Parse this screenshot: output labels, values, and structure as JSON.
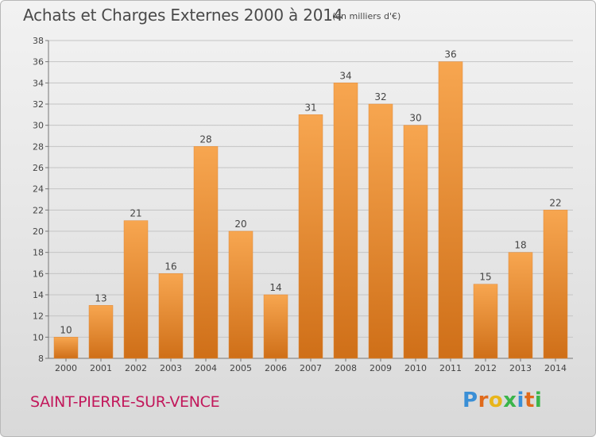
{
  "title": "Achats et Charges Externes 2000 à 2014",
  "unit_note": "(en milliers d'€)",
  "commune": "SAINT-PIERRE-SUR-VENCE",
  "logo": {
    "text": "Proxiti",
    "letters": [
      "P",
      "r",
      "o",
      "x",
      "i",
      "t",
      "i"
    ],
    "colors": [
      "#3a8fd6",
      "#e06a1b",
      "#e8b51a",
      "#3ab54a",
      "#3a8fd6",
      "#e06a1b",
      "#3ab54a"
    ]
  },
  "colors": {
    "bar_top": "#f7a650",
    "bar_bottom": "#cf6f18",
    "commune_text": "#c2185b"
  },
  "chart_data": {
    "type": "bar",
    "title": "Achats et Charges Externes 2000 à 2014",
    "subtitle": "(en milliers d'€)",
    "categories": [
      "2000",
      "2001",
      "2002",
      "2003",
      "2004",
      "2005",
      "2006",
      "2007",
      "2008",
      "2009",
      "2010",
      "2011",
      "2012",
      "2013",
      "2014"
    ],
    "values": [
      10,
      13,
      21,
      16,
      28,
      20,
      14,
      31,
      34,
      32,
      30,
      36,
      15,
      18,
      22
    ],
    "xlabel": "",
    "ylabel": "",
    "ylim": [
      8,
      38
    ],
    "yticks": [
      "8",
      "10",
      "12",
      "14",
      "16",
      "18",
      "20",
      "22",
      "24",
      "26",
      "28",
      "30",
      "32",
      "34",
      "36",
      "38"
    ],
    "grid": true,
    "legend": "none",
    "data_labels": true
  }
}
